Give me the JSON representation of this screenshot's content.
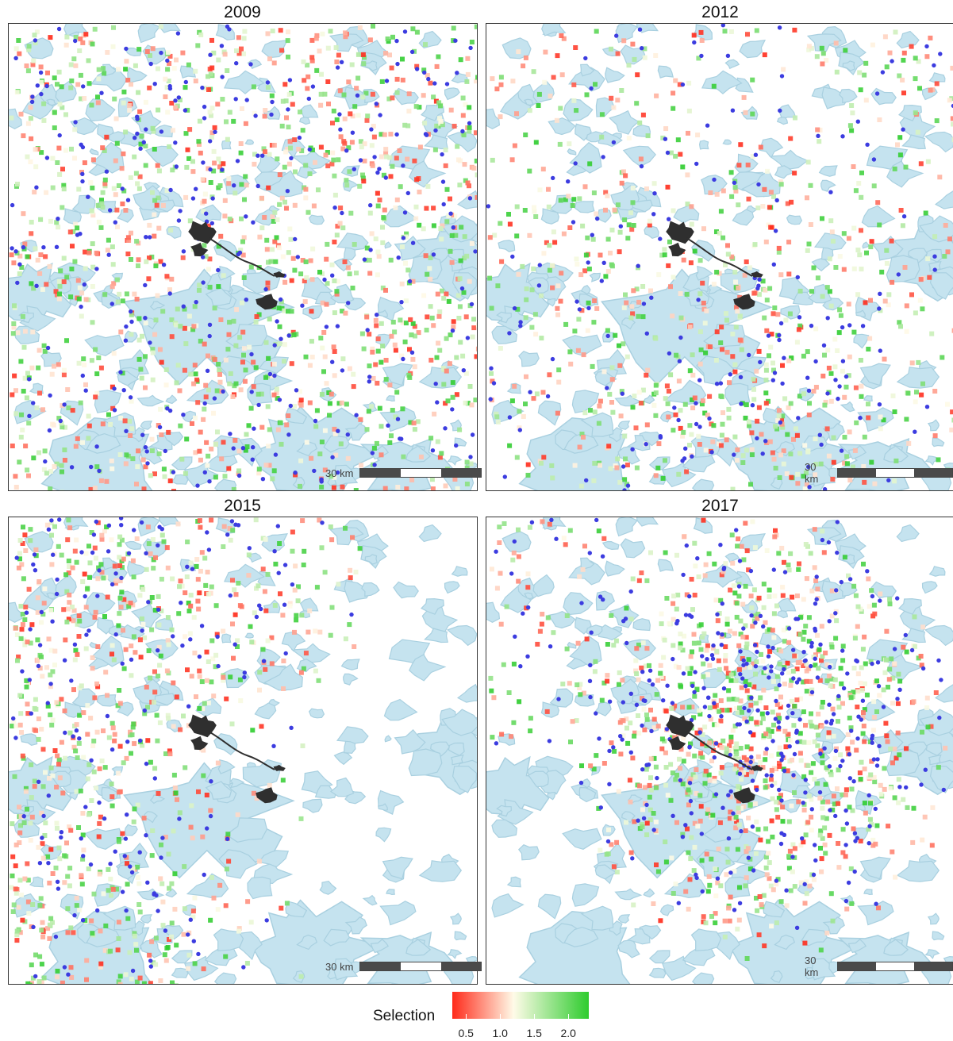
{
  "panels": [
    {
      "year": "2009",
      "scale_label": "30 km",
      "density": 1.0,
      "blueShare": 0.32,
      "pattern": "scatter"
    },
    {
      "year": "2012",
      "scale_label": "30 km",
      "density": 1.1,
      "blueShare": 0.3,
      "pattern": "south-east"
    },
    {
      "year": "2015",
      "scale_label": "30 km",
      "density": 1.2,
      "blueShare": 0.3,
      "pattern": "west"
    },
    {
      "year": "2017",
      "scale_label": "30 km",
      "density": 2.6,
      "blueShare": 0.42,
      "pattern": "dense-east"
    }
  ],
  "legend": {
    "title": "Selection",
    "ticks": [
      "0.5",
      "1.0",
      "1.5",
      "2.0"
    ],
    "tick_values": [
      0.5,
      1.0,
      1.5,
      2.0
    ],
    "range": [
      0.3,
      2.3
    ],
    "colors": {
      "low": "#ff2a1a",
      "mid": "#fffbe8",
      "high": "#2ecc2e"
    }
  },
  "colors": {
    "water": "#c5e3ef",
    "water_edge": "#a9d0e0",
    "point_blue": "#3c3ce0",
    "track": "#2f2f2f"
  }
}
